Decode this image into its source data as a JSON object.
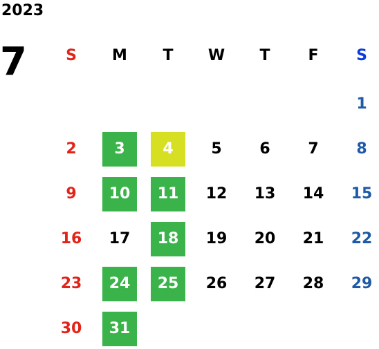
{
  "calendar": {
    "year": "2023",
    "month": "7",
    "weekdays": [
      "S",
      "M",
      "T",
      "W",
      "T",
      "F",
      "S"
    ],
    "weeks": [
      [
        "",
        "",
        "",
        "",
        "",
        "",
        "1"
      ],
      [
        "2",
        "3",
        "4",
        "5",
        "6",
        "7",
        "8"
      ],
      [
        "9",
        "10",
        "11",
        "12",
        "13",
        "14",
        "15"
      ],
      [
        "16",
        "17",
        "18",
        "19",
        "20",
        "21",
        "22"
      ],
      [
        "23",
        "24",
        "25",
        "26",
        "27",
        "28",
        "29"
      ],
      [
        "30",
        "31",
        "",
        "",
        "",
        "",
        ""
      ]
    ],
    "highlight_green_days": [
      "3",
      "10",
      "11",
      "18",
      "24",
      "25",
      "31"
    ],
    "highlight_yellow_days": [
      "4"
    ]
  },
  "colors": {
    "green_highlight": "#3ab44a",
    "yellow_highlight": "#d6df22",
    "sunday": "#e2231a",
    "saturday": "#1f5aa6",
    "saturday_header": "#0a3cdc",
    "weekday": "#000000"
  }
}
